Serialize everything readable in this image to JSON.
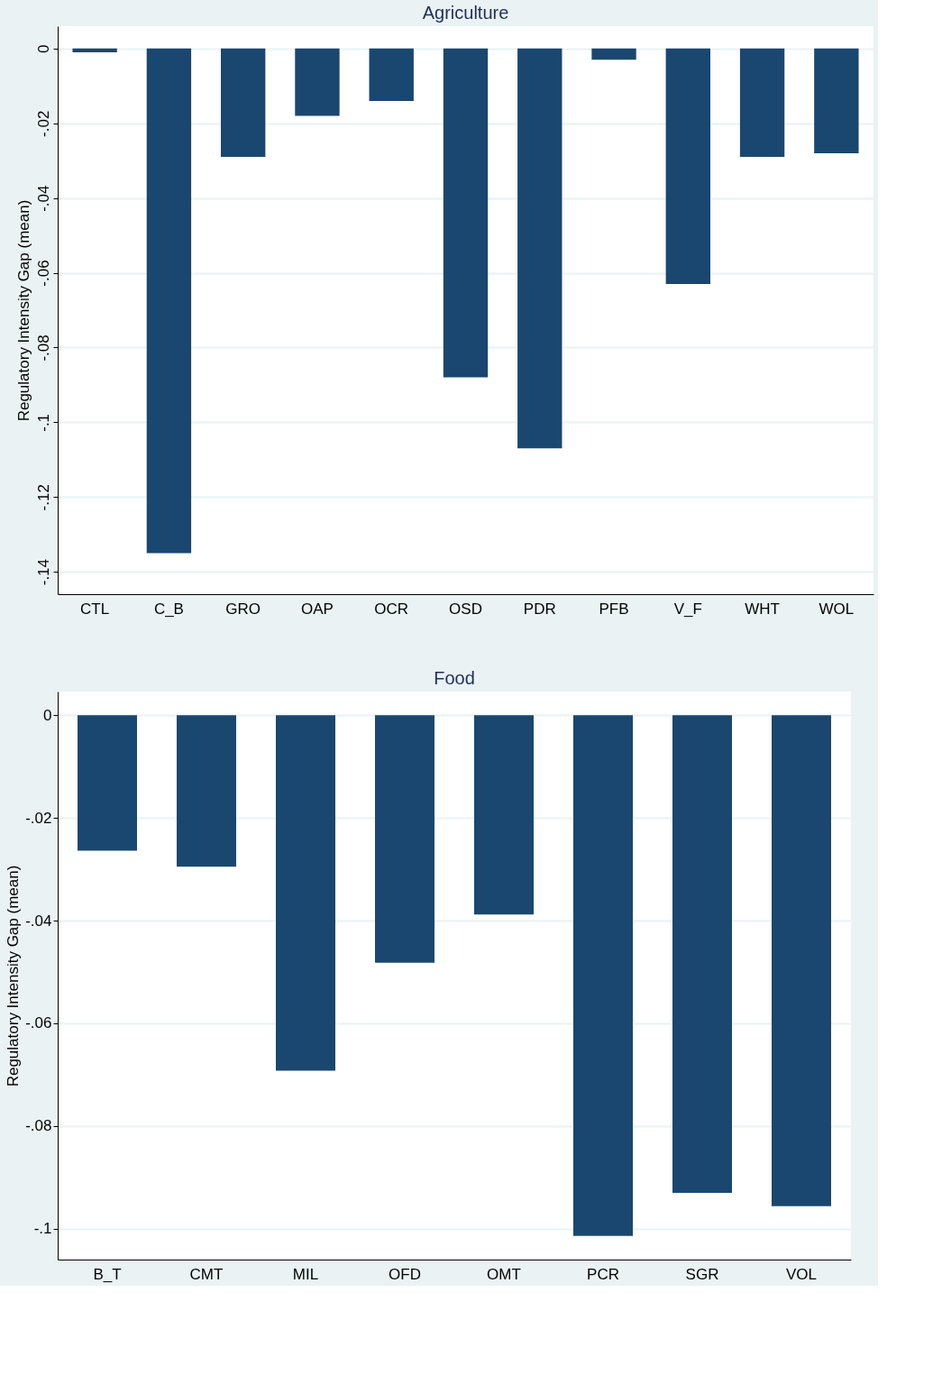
{
  "chart_data": [
    {
      "type": "bar",
      "title": "Agriculture",
      "ylabel": "Regulatory Intensity Gap (mean)",
      "categories": [
        "CTL",
        "C_B",
        "GRO",
        "OAP",
        "OCR",
        "OSD",
        "PDR",
        "PFB",
        "V_F",
        "WHT",
        "WOL"
      ],
      "values": [
        -0.001,
        -0.135,
        -0.029,
        -0.018,
        -0.014,
        -0.088,
        -0.107,
        -0.003,
        -0.063,
        -0.029,
        -0.028
      ],
      "color": "#1a476f",
      "ylim": [
        -0.146,
        0.006
      ],
      "yticks": [
        {
          "value": -0.14,
          "label": "-.14"
        },
        {
          "value": -0.12,
          "label": "-.12"
        },
        {
          "value": -0.1,
          "label": "-.1"
        },
        {
          "value": -0.08,
          "label": "-.08"
        },
        {
          "value": -0.06,
          "label": "-.06"
        },
        {
          "value": -0.04,
          "label": "-.04"
        },
        {
          "value": -0.02,
          "label": "-.02"
        },
        0
      ],
      "grid": "y"
    },
    {
      "type": "bar",
      "title": "Food",
      "ylabel": "Regulatory Intensity Gap (mean)",
      "categories": [
        "B_T",
        "CMT",
        "MIL",
        "OFD",
        "OMT",
        "PCR",
        "SGR",
        "VOL"
      ],
      "values": [
        -0.0264,
        -0.0295,
        -0.0692,
        -0.0482,
        -0.0388,
        -0.1014,
        -0.093,
        -0.0956
      ],
      "color": "#1a476f",
      "ylim": [
        -0.106,
        0.0046
      ],
      "yticks": [
        {
          "value": -0.1,
          "label": "-.1"
        },
        {
          "value": -0.08,
          "label": "-.08"
        },
        {
          "value": -0.06,
          "label": "-.06"
        },
        {
          "value": -0.04,
          "label": "-.04"
        },
        {
          "value": -0.02,
          "label": "-.02"
        },
        0
      ],
      "grid": "y"
    }
  ]
}
